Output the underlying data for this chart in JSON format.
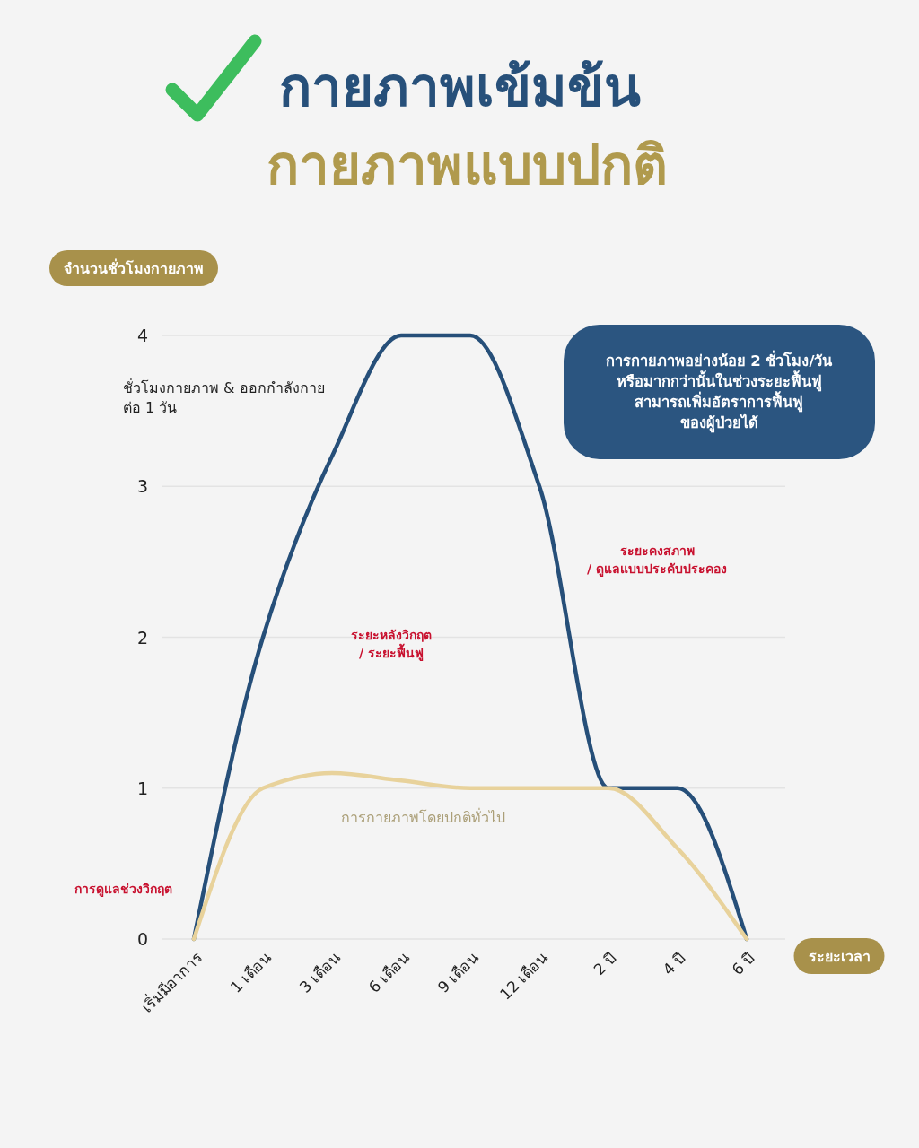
{
  "chart_data": {
    "type": "line",
    "title": "กายภาพเข้มข้น",
    "subtitle": "กายภาพแบบปกติ",
    "ylabel": "จำนวนชั่วโมงกายภาพ",
    "xlabel": "ระยะเวลา",
    "categories": [
      "เริ่มมีอาการ",
      "1 เดือน",
      "3 เดือน",
      "6 เดือน",
      "9 เดือน",
      "12 เดือน",
      "2 ปี",
      "4 ปี",
      "6 ปี"
    ],
    "series": [
      {
        "color": "#264f79",
        "values": [
          0,
          2,
          3.2,
          4,
          4,
          3,
          1,
          1,
          0
        ]
      },
      {
        "name": "การกายภาพโดยปกติทั่วไป",
        "color": "#e8d29b",
        "values": [
          0,
          1,
          1.1,
          1.05,
          1,
          1,
          1,
          0.6,
          0
        ]
      }
    ],
    "ylim": [
      0,
      4
    ],
    "yticks": [
      0,
      1,
      2,
      3,
      4
    ],
    "grid": "y",
    "line_style": "solid",
    "annotations": [
      "ชั่วโมงกายภาพ & ออกกำลังกาย\nต่อ 1 วัน",
      "การกายภาพอย่างน้อย 2 ชั่วโมง/วัน\nหรือมากกว่านั้นในช่วงระยะฟื้นฟู\nสามารถเพิ่มอัตราการฟื้นฟู\nของผู้ป่วยได้",
      "ระยะคงสภาพ\n/ ดูแลแบบประคับประคอง",
      "ระยะหลังวิกฤต\n/ ระยะฟื้นฟู",
      "การดูแลช่วงวิกฤต"
    ]
  }
}
